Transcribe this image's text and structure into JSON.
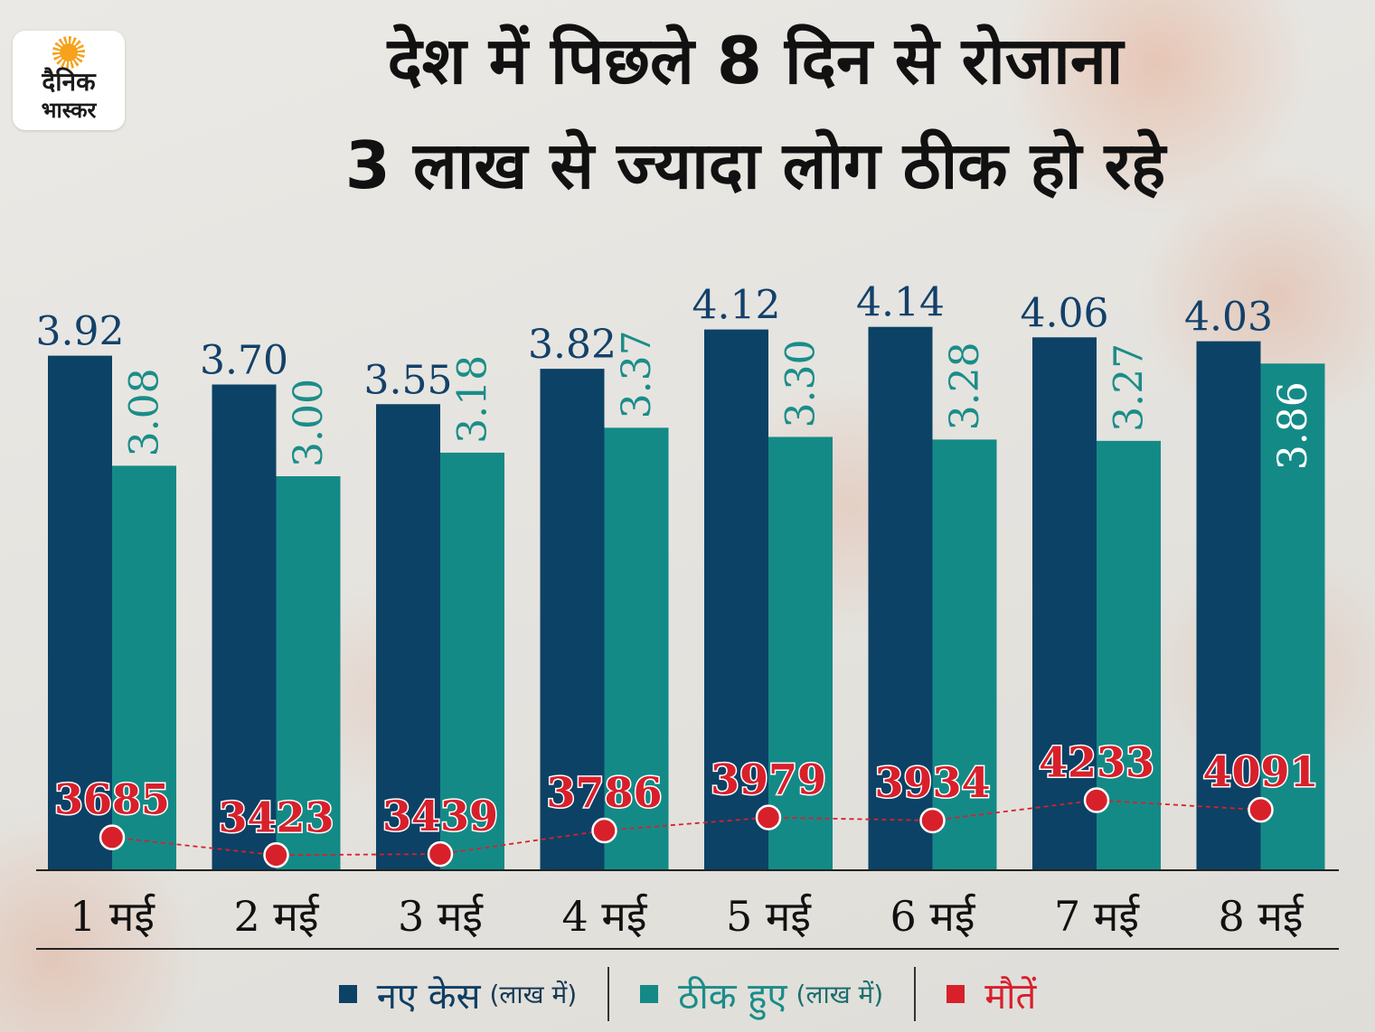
{
  "logo": {
    "line1": "दैनिक",
    "line2": "भास्कर"
  },
  "title": {
    "line1": "देश में पिछले 8 दिन से रोजाना",
    "line2": "3 लाख से ज्यादा लोग ठीक हो रहे"
  },
  "colors": {
    "cases": "#0c4266",
    "recovered": "#148a87",
    "deaths": "#d8202b",
    "cases_label": "#12416a",
    "recovered_label": "#1a8d89"
  },
  "chart_data": {
    "type": "bar",
    "title": "देश में पिछले 8 दिन से रोजाना 3 लाख से ज्यादा लोग ठीक हो रहे",
    "categories": [
      "1 मई",
      "2 मई",
      "3 मई",
      "4 मई",
      "5 मई",
      "6 मई",
      "7 मई",
      "8 मई"
    ],
    "series": [
      {
        "name": "नए केस",
        "unit": "(लाख में)",
        "values": [
          3.92,
          3.7,
          3.55,
          3.82,
          4.12,
          4.14,
          4.06,
          4.03
        ],
        "labels": [
          "3.92",
          "3.70",
          "3.55",
          "3.82",
          "4.12",
          "4.14",
          "4.06",
          "4.03"
        ]
      },
      {
        "name": "ठीक हुए",
        "unit": "(लाख में)",
        "values": [
          3.08,
          3.0,
          3.18,
          3.37,
          3.3,
          3.28,
          3.27,
          3.86
        ],
        "labels": [
          "3.08",
          "3.00",
          "3.18",
          "3.37",
          "3.30",
          "3.28",
          "3.27",
          "3.86"
        ]
      },
      {
        "name": "मौतें",
        "type": "line",
        "values": [
          3685,
          3423,
          3439,
          3786,
          3979,
          3934,
          4233,
          4091
        ],
        "labels": [
          "3685",
          "3423",
          "3439",
          "3786",
          "3979",
          "3934",
          "4233",
          "4091"
        ]
      }
    ],
    "xlabel": "",
    "ylabel": "",
    "ylim": [
      0,
      4.5
    ],
    "deaths_ylim": [
      3000,
      5500
    ],
    "grid": false,
    "legend": "bottom-center"
  },
  "legend": {
    "cases": {
      "label": "नए केस",
      "unit": "(लाख में)"
    },
    "recovered": {
      "label": "ठीक हुए",
      "unit": "(लाख में)"
    },
    "deaths": {
      "label": "मौतें"
    }
  }
}
